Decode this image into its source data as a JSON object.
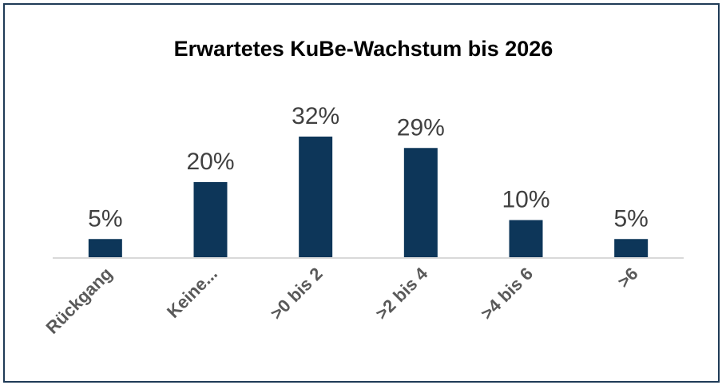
{
  "chart_data": {
    "type": "bar",
    "title": "Erwartetes KuBe-Wachstum bis 2026",
    "xlabel": "",
    "ylabel": "",
    "categories": [
      "Rückgang",
      "Keine...",
      ">0 bis 2",
      ">2 bis 4",
      ">4 bis 6",
      ">6"
    ],
    "values": [
      5,
      20,
      32,
      29,
      10,
      5
    ],
    "value_labels": [
      "5%",
      "20%",
      "32%",
      "29%",
      "10%",
      "5%"
    ],
    "ylim": [
      0,
      40
    ],
    "grid": false,
    "legend": "none",
    "bar_color": "#0d3659",
    "axis_color": "#d9d9d9",
    "frame_color": "#1f3b57"
  }
}
